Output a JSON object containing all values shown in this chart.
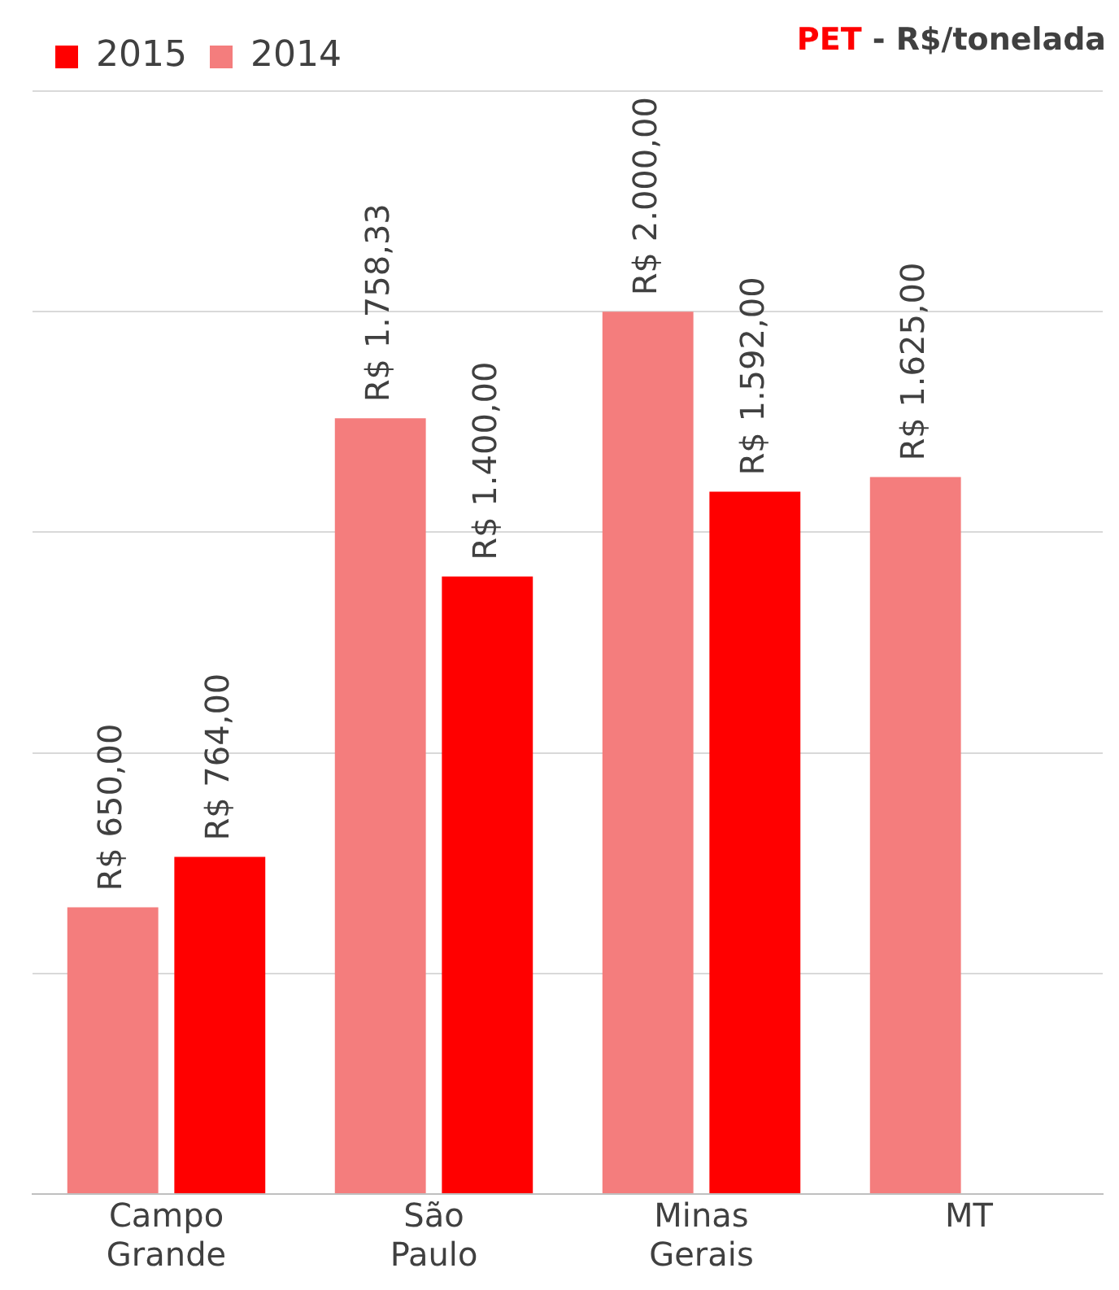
{
  "chart_data": {
    "type": "bar",
    "title": "PET - R$/tonelada",
    "categories": [
      "Campo Grande",
      "São Paulo",
      "Minas Gerais",
      "MT"
    ],
    "series": [
      {
        "name": "2014",
        "color": "#f47d7d",
        "values": [
          650,
          1758.33,
          2000,
          1625
        ],
        "value_labels": [
          "R$ 650,00",
          "R$ 1.758,33",
          "R$ 2.000,00",
          "R$ 1.625,00"
        ]
      },
      {
        "name": "2015",
        "color": "#ff0000",
        "values": [
          764,
          1400,
          1592,
          null
        ],
        "value_labels": [
          "R$ 764,00",
          "R$ 1.400,00",
          "R$ 1.592,00",
          null
        ]
      }
    ],
    "tick_labels": "x",
    "grid": "y",
    "legend": "top left"
  }
}
